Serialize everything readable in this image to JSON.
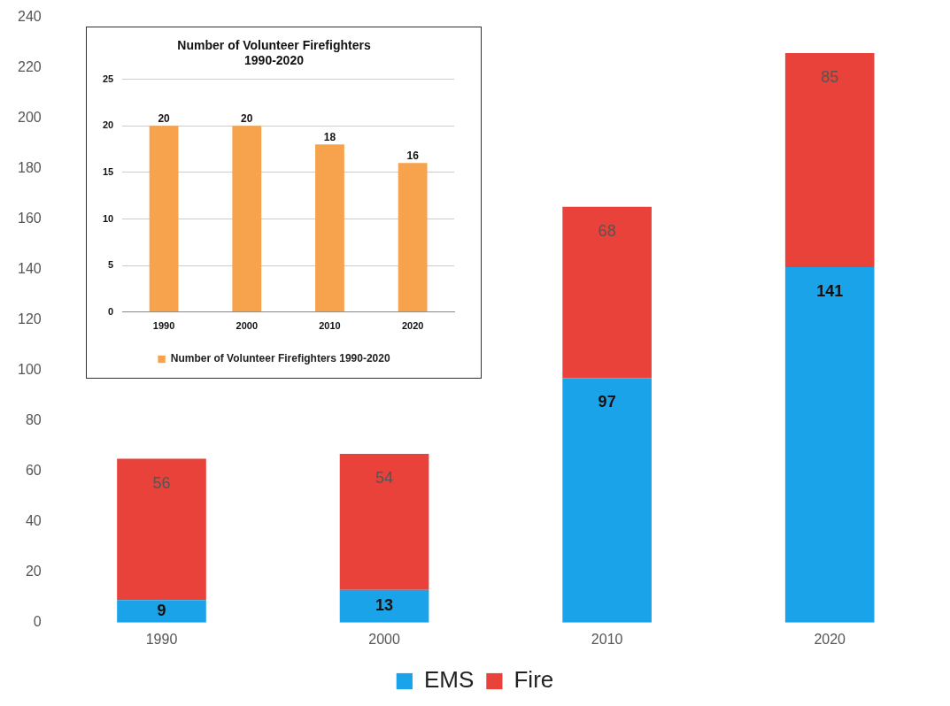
{
  "chart_data": [
    {
      "type": "bar",
      "categories": [
        "1990",
        "2000",
        "2010",
        "2020"
      ],
      "stacked": true,
      "series": [
        {
          "name": "EMS",
          "color": "#1aa3e8",
          "values": [
            9,
            13,
            97,
            141
          ]
        },
        {
          "name": "Fire",
          "color": "#e8423a",
          "values": [
            56,
            54,
            68,
            85
          ]
        }
      ],
      "ylim": [
        0,
        240
      ],
      "yticks": [
        0,
        20,
        40,
        60,
        80,
        100,
        120,
        140,
        160,
        180,
        200,
        220,
        240
      ],
      "grid": false,
      "legend": "bottom",
      "data_labels": true
    },
    {
      "type": "bar",
      "title": "Number of Volunteer Firefighters\n1990-2020",
      "categories": [
        "1990",
        "2000",
        "2010",
        "2020"
      ],
      "series": [
        {
          "name": "Number of Volunteer Firefighters 1990-2020",
          "color": "#f7a24c",
          "values": [
            20,
            20,
            18,
            16
          ]
        }
      ],
      "ylim": [
        0,
        25
      ],
      "yticks": [
        0,
        5,
        10,
        15,
        20,
        25
      ],
      "grid": "y",
      "legend": "bottom",
      "data_labels": true
    }
  ]
}
